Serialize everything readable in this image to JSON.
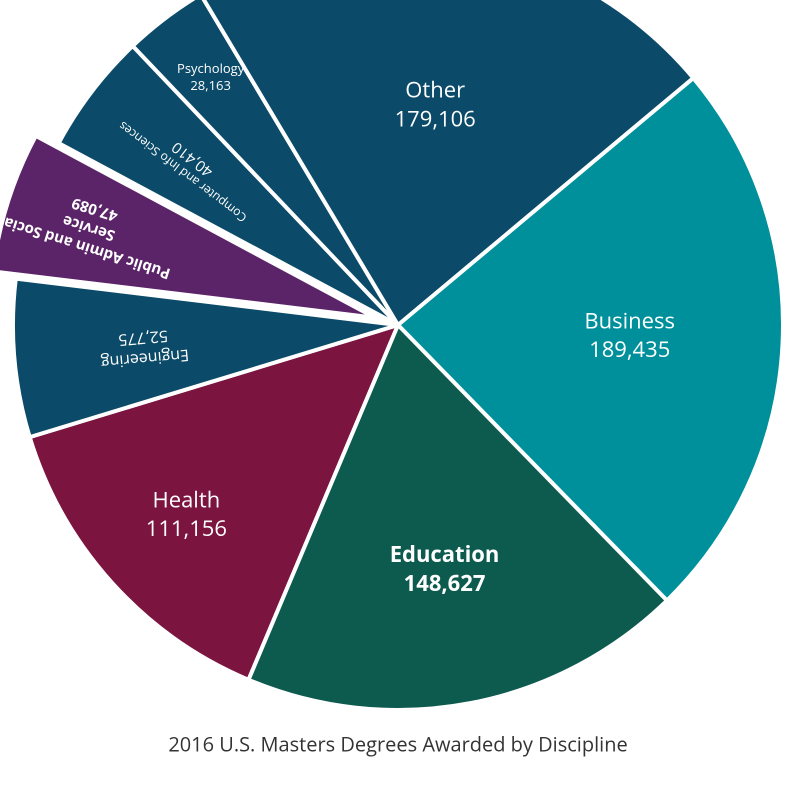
{
  "chart_data": {
    "type": "pie",
    "title": "2016 U.S. Masters Degrees Awarded by Discipline",
    "categories": [
      "Health",
      "Engineering",
      "Public Admin and Social Service",
      "Computer and Info Sciences",
      "Psychology",
      "Other",
      "Business",
      "Education"
    ],
    "values": [
      111156,
      52775,
      47089,
      40410,
      28163,
      179106,
      189435,
      148627
    ],
    "value_labels": [
      "111,156",
      "52,775",
      "47,089",
      "40,410",
      "28,163",
      "179,106",
      "189,435",
      "148,627"
    ],
    "colors": [
      "#7b1540",
      "#0b4a68",
      "#5b2468",
      "#0b4a68",
      "#0b4a68",
      "#0b4a68",
      "#00909b",
      "#0d5a4f"
    ],
    "explode": [
      false,
      false,
      true,
      false,
      false,
      false,
      false,
      false
    ]
  }
}
